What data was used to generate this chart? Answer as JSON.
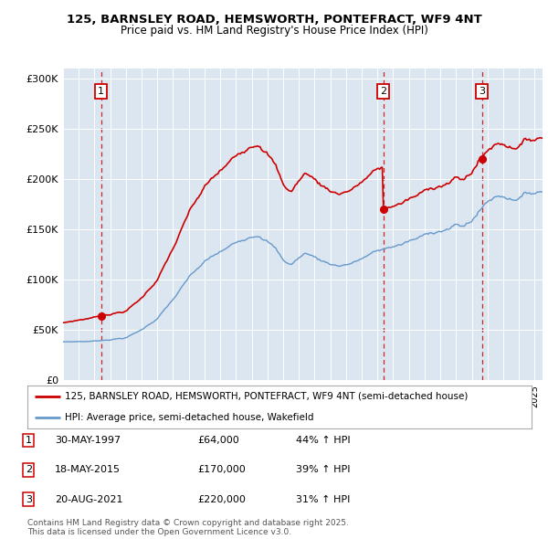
{
  "title_line1": "125, BARNSLEY ROAD, HEMSWORTH, PONTEFRACT, WF9 4NT",
  "title_line2": "Price paid vs. HM Land Registry's House Price Index (HPI)",
  "red_label": "125, BARNSLEY ROAD, HEMSWORTH, PONTEFRACT, WF9 4NT (semi-detached house)",
  "blue_label": "HPI: Average price, semi-detached house, Wakefield",
  "footnote": "Contains HM Land Registry data © Crown copyright and database right 2025.\nThis data is licensed under the Open Government Licence v3.0.",
  "transactions": [
    {
      "num": 1,
      "date": "30-MAY-1997",
      "price": 64000,
      "hpi_pct": "44% ↑ HPI",
      "year": 1997.42
    },
    {
      "num": 2,
      "date": "18-MAY-2015",
      "price": 170000,
      "hpi_pct": "39% ↑ HPI",
      "year": 2015.38
    },
    {
      "num": 3,
      "date": "20-AUG-2021",
      "price": 220000,
      "hpi_pct": "31% ↑ HPI",
      "year": 2021.64
    }
  ],
  "ylim": [
    0,
    310000
  ],
  "xlim_start": 1995.0,
  "xlim_end": 2025.5,
  "background_color": "#dce6f1",
  "grid_color": "#ffffff",
  "red_line_color": "#cc0000",
  "blue_line_color": "#6699cc",
  "dashed_color": "#cc0000"
}
